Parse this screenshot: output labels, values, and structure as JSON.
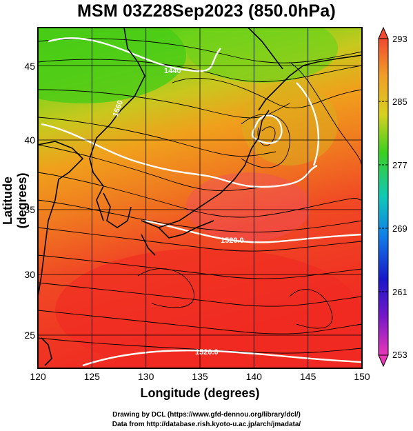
{
  "title": "MSM 03Z28Sep2023 (850.0hPa)",
  "axes": {
    "xlabel": "Longitude (degrees)",
    "ylabel": "Latitude  (degrees)",
    "x_ticks": [
      "120",
      "125",
      "130",
      "135",
      "140",
      "145",
      "150"
    ],
    "y_ticks": [
      "25",
      "30",
      "35",
      "40",
      "45"
    ]
  },
  "colorbar": {
    "ticks": [
      "293",
      "285",
      "277",
      "269",
      "261",
      "253"
    ]
  },
  "contour_labels": [
    "1440",
    "1520.0",
    "1520.0",
    "1560"
  ],
  "credits": {
    "line1": "Drawing by DCL (https://www.gfd-dennou.org/library/dcl/)",
    "line2": "Data from http://database.rish.kyoto-u.ac.jp/arch/jmadata/"
  },
  "chart_data": {
    "type": "heatmap",
    "variable": "temperature with streamlines and height contours",
    "xlim": [
      120,
      150
    ],
    "ylim": [
      22.5,
      48
    ],
    "colorbar_range": [
      253,
      293
    ],
    "grid": true
  },
  "colors": {
    "cold": "#1a1ad9",
    "cool": "#14c814",
    "warm": "#f0b400",
    "hot": "#f0281e",
    "contour": "#ffffff",
    "coast": "#000000"
  }
}
